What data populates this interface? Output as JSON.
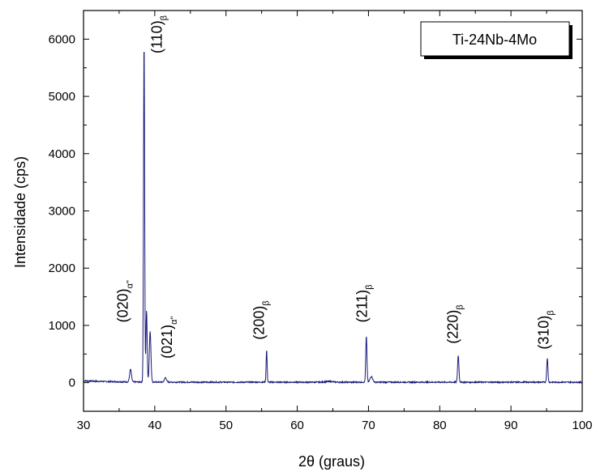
{
  "chart_data": {
    "type": "line",
    "xlabel_main": "2",
    "xlabel_theta": "θ",
    "xlabel_rest": " (graus)",
    "ylabel": "Intensidade (cps)",
    "xlim": [
      30,
      100
    ],
    "ylim": [
      -500,
      6500
    ],
    "x_ticks": [
      "30",
      "40",
      "50",
      "60",
      "70",
      "80",
      "90",
      "100"
    ],
    "y_ticks": [
      "0",
      "1000",
      "2000",
      "3000",
      "4000",
      "5000",
      "6000"
    ],
    "series": [
      {
        "name": "Ti-24Nb-4Mo",
        "color": "#1a1a7a",
        "peaks": [
          {
            "x": 36.6,
            "y": 220,
            "w": 0.18
          },
          {
            "x": 38.5,
            "y": 5950,
            "w": 0.11
          },
          {
            "x": 38.85,
            "y": 1250,
            "w": 0.12
          },
          {
            "x": 39.35,
            "y": 880,
            "w": 0.16
          },
          {
            "x": 41.5,
            "y": 80,
            "w": 0.2
          },
          {
            "x": 55.7,
            "y": 560,
            "w": 0.1
          },
          {
            "x": 69.7,
            "y": 800,
            "w": 0.12
          },
          {
            "x": 70.4,
            "y": 100,
            "w": 0.25
          },
          {
            "x": 82.6,
            "y": 470,
            "w": 0.13
          },
          {
            "x": 95.1,
            "y": 420,
            "w": 0.12
          }
        ]
      }
    ],
    "peak_labels": [
      {
        "text": "(020)",
        "sub": "α\"",
        "x": 36.2,
        "y": 1050
      },
      {
        "text": "(110)",
        "sub": "β",
        "x": 41.0,
        "y": 5750
      },
      {
        "text": "(021)",
        "sub": "α\"",
        "x": 42.4,
        "y": 420
      },
      {
        "text": "(200)",
        "sub": "β",
        "x": 55.3,
        "y": 750
      },
      {
        "text": "(211)",
        "sub": "β",
        "x": 69.8,
        "y": 1050
      },
      {
        "text": "(220)",
        "sub": "β",
        "x": 82.5,
        "y": 680
      },
      {
        "text": "(310)",
        "sub": "β",
        "x": 95.3,
        "y": 580
      }
    ],
    "legend": {
      "text": "Ti-24Nb-4Mo",
      "placement": "top-right"
    },
    "grid": false
  }
}
